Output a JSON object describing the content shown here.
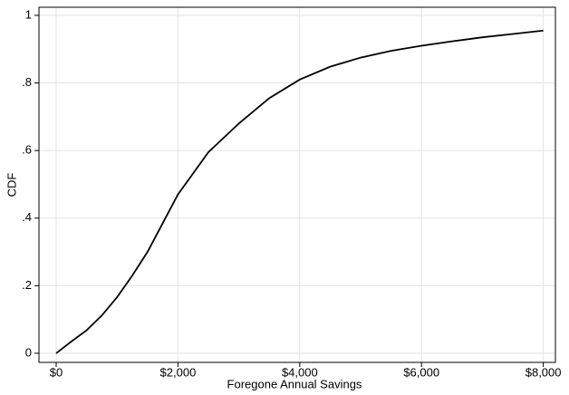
{
  "chart_data": {
    "type": "line",
    "x_label": "Foregone Annual Savings",
    "y_label": "CDF",
    "x": [
      0,
      250,
      500,
      750,
      1000,
      1250,
      1500,
      1750,
      2000,
      2500,
      3000,
      3500,
      4000,
      4500,
      5000,
      5500,
      6000,
      6500,
      7000,
      7500,
      8000
    ],
    "series": [
      {
        "color": "#000000",
        "values": [
          0,
          0.035,
          0.068,
          0.112,
          0.166,
          0.23,
          0.3,
          0.385,
          0.47,
          0.595,
          0.68,
          0.755,
          0.81,
          0.848,
          0.875,
          0.895,
          0.91,
          0.923,
          0.935,
          0.945,
          0.955
        ]
      }
    ],
    "xlim": [
      -283,
      8199
    ],
    "ylim": [
      -0.027,
      1.024
    ],
    "xticks": [
      {
        "value": 0,
        "label": "$0"
      },
      {
        "value": 2000,
        "label": "$2,000"
      },
      {
        "value": 4000,
        "label": "$4,000"
      },
      {
        "value": 6000,
        "label": "$6,000"
      },
      {
        "value": 8000,
        "label": "$8,000"
      }
    ],
    "yticks": [
      0,
      {
        "value": 0.2,
        "label": ".2"
      },
      {
        "value": 0.4,
        "label": ".4"
      },
      {
        "value": 0.6,
        "label": ".6"
      },
      {
        "value": 0.8,
        "label": ".8"
      },
      1
    ],
    "grid": true
  }
}
